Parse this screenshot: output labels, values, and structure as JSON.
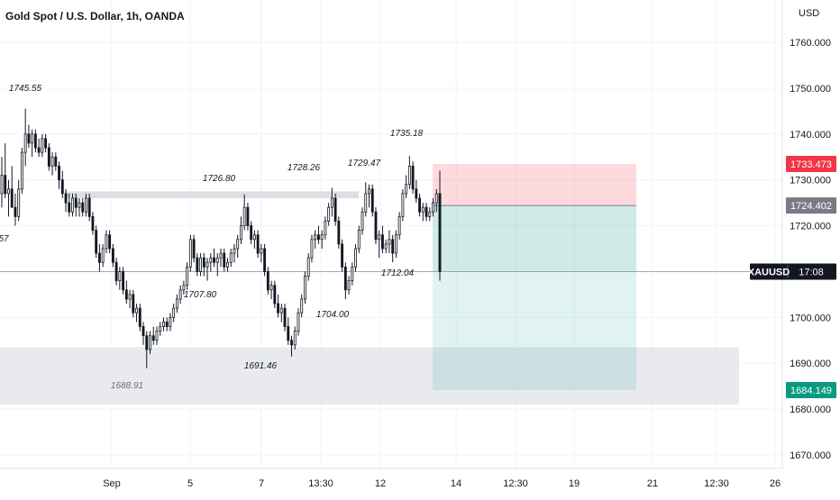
{
  "header": {
    "title": "Gold Spot / U.S. Dollar, 1h, OANDA",
    "currency": "USD"
  },
  "chart_data": {
    "type": "candlestick",
    "symbol": "XAUUSD",
    "ylim": [
      1665,
      1767
    ],
    "y_ticks": [
      "1760.000",
      "1750.000",
      "1740.000",
      "1730.000",
      "1720.000",
      "1710.000",
      "1700.000",
      "1690.000",
      "1680.000",
      "1670.000"
    ],
    "y_tick_values": [
      1760,
      1750,
      1740,
      1730,
      1720,
      1710,
      1700,
      1690,
      1680,
      1670
    ],
    "x_ticks": [
      "Sep",
      "5",
      "7",
      "13:30",
      "12",
      "14",
      "12:30",
      "19",
      "21",
      "12:30",
      "26"
    ],
    "annotations": [
      {
        "text": "1745.55",
        "value": 1745.55
      },
      {
        "text": "1726.80",
        "value": 1726.8
      },
      {
        "text": "1728.26",
        "value": 1728.26
      },
      {
        "text": "1729.47",
        "value": 1729.47
      },
      {
        "text": "1735.18",
        "value": 1735.18
      },
      {
        "text": "1712.04",
        "value": 1712.04
      },
      {
        "text": "1707.80",
        "value": 1707.8
      },
      {
        "text": "1704.00",
        "value": 1704.0
      },
      {
        "text": "1691.46",
        "value": 1691.46
      },
      {
        "text": "1688.91",
        "value": 1688.91
      },
      {
        "text": "57",
        "value": null
      }
    ],
    "zones": [
      {
        "name": "resistance",
        "from": 1726,
        "to": 1727.5,
        "color": "#d1d4dc"
      },
      {
        "name": "support",
        "from": 1681,
        "to": 1693.5,
        "color": "#e0e3eb"
      }
    ],
    "position": {
      "type": "short",
      "stop": 1733.473,
      "entry": 1724.402,
      "target": 1684.149,
      "stop_color": "#f23645",
      "entry_color": "#787b86",
      "target_color": "#089981"
    },
    "price_labels": [
      {
        "text": "1733.473",
        "value": 1733.473,
        "color": "#f23645"
      },
      {
        "text": "1724.402",
        "value": 1724.402,
        "color": "#787b86"
      },
      {
        "text": "1684.149",
        "value": 1684.149,
        "color": "#089981"
      }
    ],
    "current": {
      "symbol": "XAUUSD",
      "time_left": "17:08",
      "value": 1710
    },
    "candles": [
      [
        1727,
        1735,
        1724,
        1731
      ],
      [
        1731,
        1738,
        1726,
        1727
      ],
      [
        1727,
        1730,
        1722,
        1728
      ],
      [
        1728,
        1733,
        1724,
        1724
      ],
      [
        1724,
        1727,
        1720,
        1722
      ],
      [
        1722,
        1730,
        1721,
        1728
      ],
      [
        1728,
        1737,
        1727,
        1736
      ],
      [
        1736,
        1745.55,
        1733,
        1740
      ],
      [
        1740,
        1742,
        1737,
        1738
      ],
      [
        1738,
        1741,
        1735,
        1740
      ],
      [
        1740,
        1741,
        1736,
        1737
      ],
      [
        1737,
        1739,
        1735,
        1736
      ],
      [
        1736,
        1740,
        1735,
        1739
      ],
      [
        1739,
        1740,
        1736,
        1737
      ],
      [
        1737,
        1738,
        1732,
        1733
      ],
      [
        1733,
        1736,
        1731,
        1735
      ],
      [
        1735,
        1736,
        1732,
        1733
      ],
      [
        1733,
        1734,
        1728,
        1730
      ],
      [
        1730,
        1732,
        1726,
        1727
      ],
      [
        1727,
        1728,
        1723,
        1725
      ],
      [
        1725,
        1727,
        1722,
        1723
      ],
      [
        1723,
        1727,
        1722,
        1726
      ],
      [
        1726,
        1727,
        1722,
        1724
      ],
      [
        1724,
        1726,
        1722,
        1725
      ],
      [
        1725,
        1726,
        1722,
        1723
      ],
      [
        1723,
        1727,
        1722,
        1726
      ],
      [
        1726,
        1727,
        1721,
        1722
      ],
      [
        1722,
        1723,
        1718,
        1719
      ],
      [
        1719,
        1720,
        1713,
        1714
      ],
      [
        1714,
        1716,
        1710,
        1712
      ],
      [
        1712,
        1716,
        1711,
        1715
      ],
      [
        1715,
        1719,
        1714,
        1718
      ],
      [
        1718,
        1719,
        1714,
        1715
      ],
      [
        1715,
        1716,
        1711,
        1712
      ],
      [
        1712,
        1713,
        1707,
        1708
      ],
      [
        1708,
        1711,
        1706,
        1710
      ],
      [
        1710,
        1711,
        1705,
        1706
      ],
      [
        1706,
        1708,
        1703,
        1704
      ],
      [
        1704,
        1706,
        1702,
        1705
      ],
      [
        1705,
        1706,
        1700,
        1701
      ],
      [
        1701,
        1703,
        1699,
        1702
      ],
      [
        1702,
        1703,
        1697,
        1698
      ],
      [
        1698,
        1699,
        1694,
        1696
      ],
      [
        1696,
        1697,
        1688.91,
        1693
      ],
      [
        1693,
        1697,
        1692,
        1696
      ],
      [
        1696,
        1698,
        1694,
        1695
      ],
      [
        1695,
        1698,
        1694,
        1697
      ],
      [
        1697,
        1699,
        1696,
        1698
      ],
      [
        1698,
        1700,
        1697,
        1699
      ],
      [
        1699,
        1700,
        1697,
        1698
      ],
      [
        1698,
        1701,
        1697,
        1700
      ],
      [
        1700,
        1703,
        1699,
        1702
      ],
      [
        1702,
        1705,
        1701,
        1704
      ],
      [
        1704,
        1707,
        1703,
        1706
      ],
      [
        1706,
        1708,
        1705,
        1707
      ],
      [
        1707,
        1712,
        1706,
        1711
      ],
      [
        1711,
        1718,
        1710,
        1717
      ],
      [
        1717,
        1718,
        1712,
        1713
      ],
      [
        1713,
        1714,
        1709,
        1710
      ],
      [
        1710,
        1714,
        1709,
        1713
      ],
      [
        1713,
        1714,
        1709,
        1711
      ],
      [
        1711,
        1713,
        1708,
        1712
      ],
      [
        1712,
        1714,
        1710,
        1713
      ],
      [
        1713,
        1715,
        1711,
        1712
      ],
      [
        1712,
        1714,
        1709,
        1713
      ],
      [
        1713,
        1715,
        1711,
        1714
      ],
      [
        1714,
        1715,
        1710,
        1711
      ],
      [
        1711,
        1713,
        1710,
        1712
      ],
      [
        1712,
        1715,
        1711,
        1714
      ],
      [
        1714,
        1716,
        1712,
        1715
      ],
      [
        1715,
        1718,
        1713,
        1717
      ],
      [
        1717,
        1722,
        1716,
        1720
      ],
      [
        1720,
        1726.8,
        1719,
        1724
      ],
      [
        1724,
        1725,
        1719,
        1720
      ],
      [
        1720,
        1721,
        1716,
        1717
      ],
      [
        1717,
        1719,
        1715,
        1718
      ],
      [
        1718,
        1719,
        1713,
        1714
      ],
      [
        1714,
        1716,
        1712,
        1715
      ],
      [
        1715,
        1716,
        1709,
        1710
      ],
      [
        1710,
        1711,
        1705,
        1706
      ],
      [
        1706,
        1708,
        1704,
        1707
      ],
      [
        1707,
        1708,
        1702,
        1703
      ],
      [
        1703,
        1705,
        1700,
        1701
      ],
      [
        1701,
        1703,
        1699,
        1702
      ],
      [
        1702,
        1703,
        1697,
        1698
      ],
      [
        1698,
        1700,
        1694,
        1695
      ],
      [
        1695,
        1696,
        1691.46,
        1694
      ],
      [
        1694,
        1698,
        1693,
        1697
      ],
      [
        1697,
        1702,
        1696,
        1701
      ],
      [
        1701,
        1705,
        1700,
        1704
      ],
      [
        1704,
        1710,
        1703,
        1709
      ],
      [
        1709,
        1714,
        1708,
        1713
      ],
      [
        1713,
        1718,
        1712,
        1717
      ],
      [
        1717,
        1719,
        1715,
        1718
      ],
      [
        1718,
        1720,
        1716,
        1717
      ],
      [
        1717,
        1719,
        1715,
        1718
      ],
      [
        1718,
        1722,
        1717,
        1721
      ],
      [
        1721,
        1725,
        1720,
        1724
      ],
      [
        1724,
        1728.26,
        1722,
        1726
      ],
      [
        1726,
        1727,
        1720,
        1721
      ],
      [
        1721,
        1722,
        1715,
        1716
      ],
      [
        1716,
        1717,
        1710,
        1711
      ],
      [
        1711,
        1712,
        1704,
        1706
      ],
      [
        1706,
        1709,
        1705,
        1708
      ],
      [
        1708,
        1712,
        1707,
        1711
      ],
      [
        1711,
        1716,
        1710,
        1715
      ],
      [
        1715,
        1720,
        1714,
        1719
      ],
      [
        1719,
        1724,
        1718,
        1723
      ],
      [
        1723,
        1729.47,
        1722,
        1727
      ],
      [
        1727,
        1729,
        1724,
        1728
      ],
      [
        1728,
        1729,
        1722,
        1723
      ],
      [
        1723,
        1724,
        1716,
        1717
      ],
      [
        1717,
        1719,
        1713,
        1718
      ],
      [
        1718,
        1720,
        1714,
        1715
      ],
      [
        1715,
        1717,
        1714,
        1716
      ],
      [
        1716,
        1719,
        1714,
        1717
      ],
      [
        1717,
        1718,
        1712.04,
        1714
      ],
      [
        1714,
        1719,
        1713,
        1718
      ],
      [
        1718,
        1723,
        1717,
        1722
      ],
      [
        1722,
        1728,
        1721,
        1727
      ],
      [
        1727,
        1731,
        1726,
        1729
      ],
      [
        1729,
        1735.18,
        1728,
        1733
      ],
      [
        1733,
        1734,
        1727,
        1728
      ],
      [
        1728,
        1730,
        1725,
        1726
      ],
      [
        1726,
        1727,
        1722,
        1723
      ],
      [
        1723,
        1725,
        1721,
        1724
      ],
      [
        1724,
        1725,
        1721,
        1722
      ],
      [
        1722,
        1724,
        1721,
        1723
      ],
      [
        1723,
        1726,
        1722,
        1725
      ],
      [
        1725,
        1728,
        1723,
        1727
      ],
      [
        1727,
        1732,
        1708,
        1710
      ]
    ]
  }
}
